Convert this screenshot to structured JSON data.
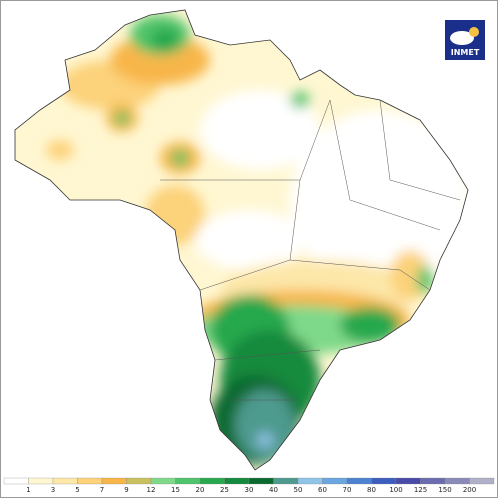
{
  "logo": "INMET",
  "legend": {
    "ticks": [
      1,
      3,
      5,
      7,
      9,
      12,
      15,
      20,
      25,
      30,
      40,
      50,
      60,
      70,
      80,
      100,
      125,
      150,
      200
    ],
    "colors": [
      "#ffffff",
      "#fff7d2",
      "#fde7a9",
      "#fcd27a",
      "#f8b648",
      "#c9c060",
      "#7fd98a",
      "#4fc46a",
      "#28a84e",
      "#138a3d",
      "#0a6a30",
      "#4e9a8e",
      "#8fc3e8",
      "#6aa6e0",
      "#4d82d0",
      "#3c5fbf",
      "#4a4aa8",
      "#6b6bb0",
      "#8a8ab8",
      "#b0b0c8"
    ]
  }
}
